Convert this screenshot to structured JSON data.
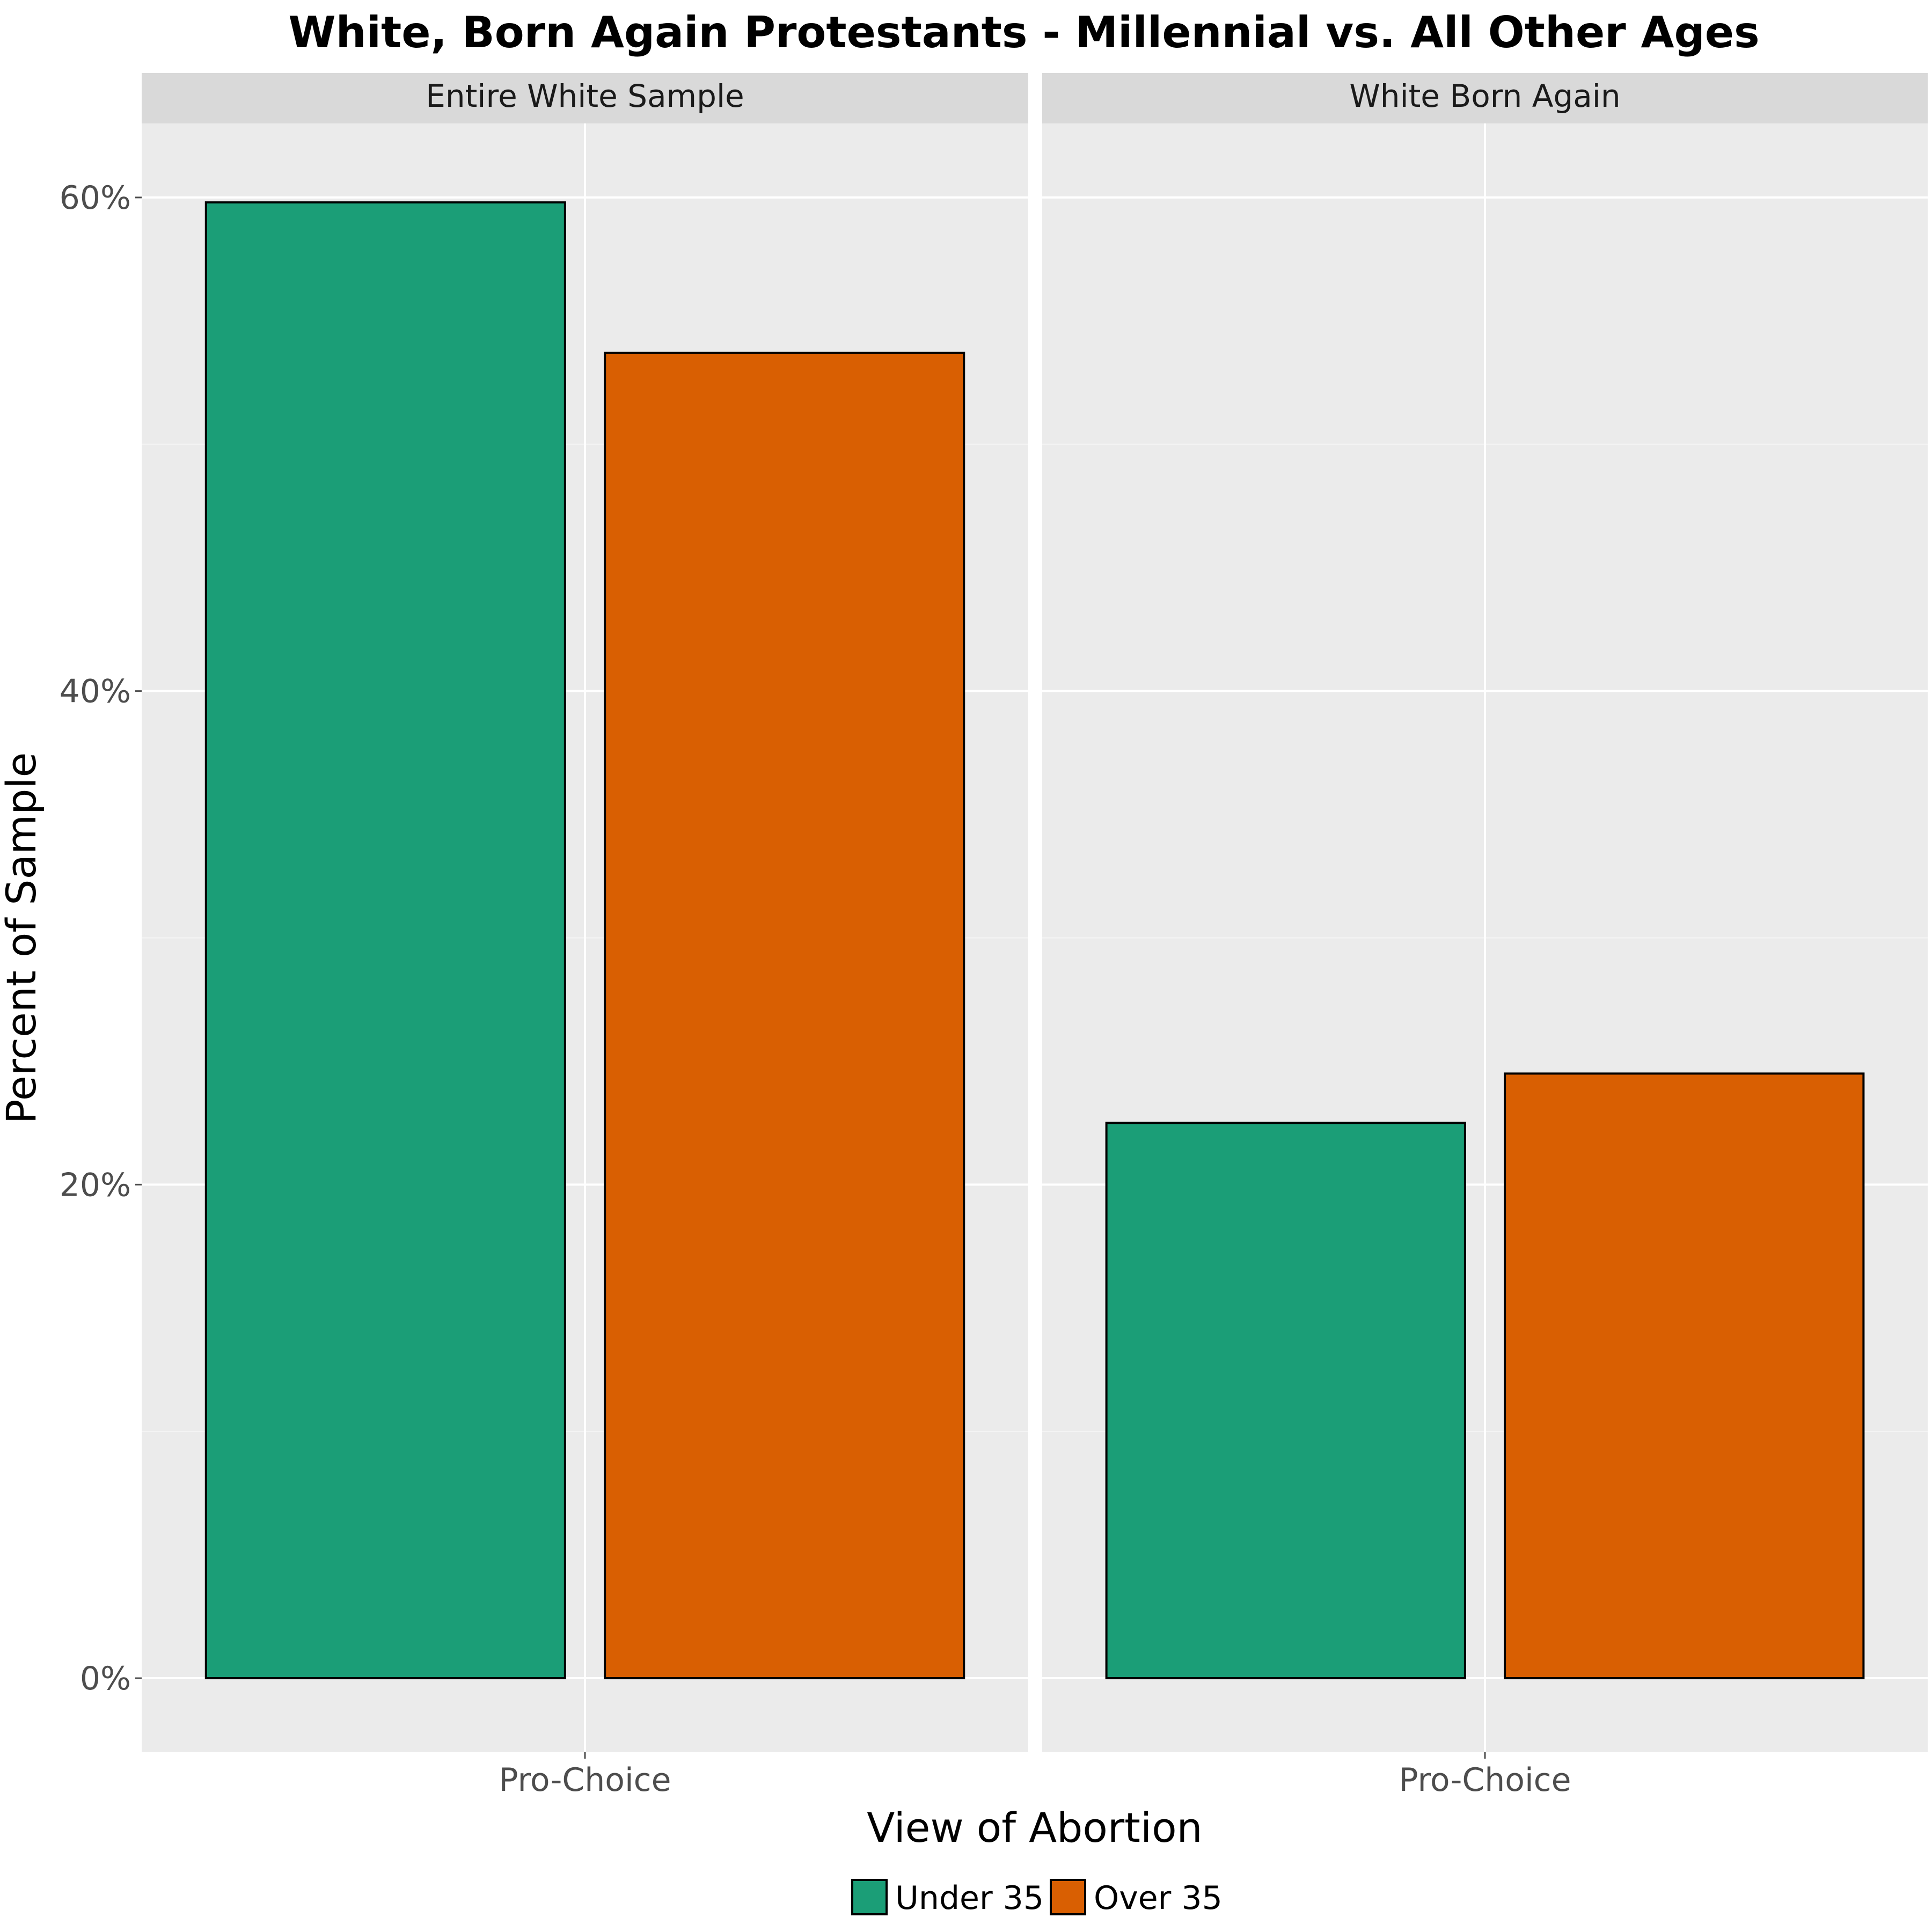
{
  "chart_data": {
    "type": "bar",
    "title": "White, Born Again Protestants - Millennial vs. All Other Ages",
    "xlabel": "View of Abortion",
    "ylabel": "Percent of Sample",
    "ylim": [
      -3.0,
      63.0
    ],
    "y_ticks": [
      0,
      20,
      40,
      60
    ],
    "y_tick_labels": [
      "0%",
      "20%",
      "40%",
      "60%"
    ],
    "grid": true,
    "legend_position": "bottom",
    "legend": [
      {
        "name": "Under 35",
        "color": "#1b9e77"
      },
      {
        "name": "Over 35",
        "color": "#d95f02"
      }
    ],
    "panels": [
      {
        "title": "Entire White Sample",
        "categories": [
          "Pro-Choice"
        ],
        "series": [
          {
            "name": "Under 35",
            "values": [
              59.8
            ]
          },
          {
            "name": "Over 35",
            "values": [
              53.7
            ]
          }
        ]
      },
      {
        "title": "White Born Again",
        "categories": [
          "Pro-Choice"
        ],
        "series": [
          {
            "name": "Under 35",
            "values": [
              22.5
            ]
          },
          {
            "name": "Over 35",
            "values": [
              24.5
            ]
          }
        ]
      }
    ]
  },
  "colors": {
    "panel_background": "#ebebeb",
    "strip_background": "#d9d9d9",
    "grid_major": "#ffffff",
    "grid_minor": "#f4f4f4",
    "bar_outline": "#000000",
    "tick_text": "#4d4d4d",
    "title_text": "#000000"
  }
}
